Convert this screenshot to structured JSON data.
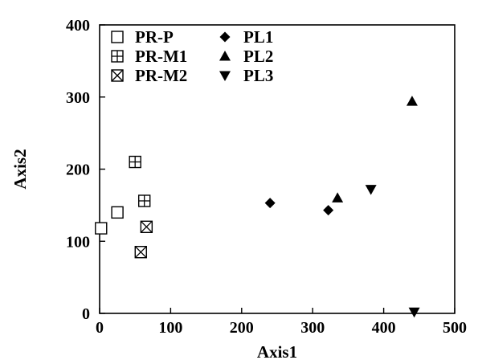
{
  "chart_data": {
    "type": "scatter",
    "xlabel": "Axis1",
    "ylabel": "Axis2",
    "xlim": [
      0,
      500
    ],
    "ylim": [
      0,
      400
    ],
    "x_ticks": [
      0,
      100,
      200,
      300,
      400,
      500
    ],
    "y_ticks": [
      0,
      100,
      200,
      300,
      400
    ],
    "grid": false,
    "legend_position": "top-left",
    "series": [
      {
        "name": "PR-P",
        "marker": "open-square",
        "points": [
          [
            2,
            118
          ],
          [
            25,
            140
          ]
        ]
      },
      {
        "name": "PR-M1",
        "marker": "square-plus",
        "points": [
          [
            50,
            210
          ],
          [
            63,
            156
          ]
        ]
      },
      {
        "name": "PR-M2",
        "marker": "square-x",
        "points": [
          [
            58,
            85
          ],
          [
            66,
            120
          ]
        ]
      },
      {
        "name": "PL1",
        "marker": "diamond",
        "points": [
          [
            240,
            153
          ],
          [
            322,
            143
          ]
        ]
      },
      {
        "name": "PL2",
        "marker": "triangle-up",
        "points": [
          [
            335,
            160
          ],
          [
            440,
            294
          ]
        ]
      },
      {
        "name": "PL3",
        "marker": "triangle-down",
        "points": [
          [
            382,
            172
          ],
          [
            443,
            2
          ]
        ]
      }
    ]
  }
}
